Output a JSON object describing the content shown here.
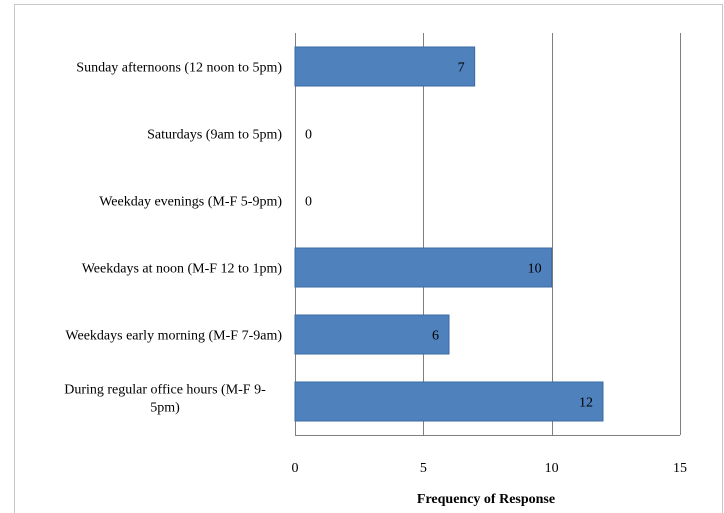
{
  "chart_data": {
    "type": "bar",
    "orientation": "horizontal",
    "categories": [
      "Sunday afternoons (12 noon to 5pm)",
      "Saturdays (9am to 5pm)",
      "Weekday evenings (M-F 5-9pm)",
      "Weekdays at noon (M-F 12 to 1pm)",
      "Weekdays early morning (M-F 7-9am)",
      "During regular office hours (M-F 9-5pm)"
    ],
    "category_lines": [
      [
        "Sunday afternoons (12 noon to 5pm)"
      ],
      [
        "Saturdays (9am to 5pm)"
      ],
      [
        "Weekday evenings (M-F 5-9pm)"
      ],
      [
        "Weekdays at noon (M-F 12 to 1pm)"
      ],
      [
        "Weekdays early morning (M-F 7-9am)"
      ],
      [
        "During regular office hours (M-F 9-",
        "5pm)"
      ]
    ],
    "values": [
      7,
      0,
      0,
      10,
      6,
      12
    ],
    "xlabel": "Frequency of Response",
    "ylabel": "",
    "xlim": [
      0,
      15
    ],
    "xticks": [
      0,
      5,
      10,
      15
    ],
    "grid": true,
    "bar_color": "#4f81bd",
    "bar_border_color": "#3a6aa3",
    "grid_color": "#7f7f7f"
  }
}
